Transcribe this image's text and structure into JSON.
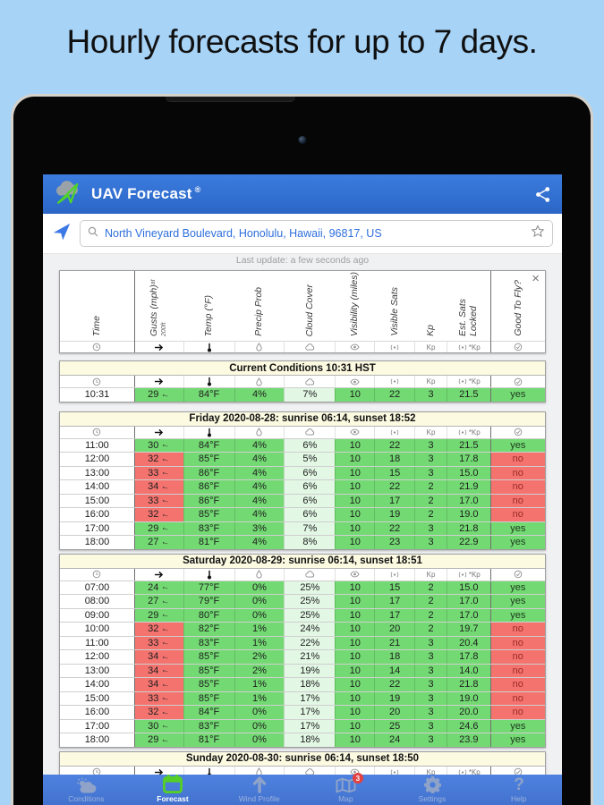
{
  "page": {
    "headline": "Hourly forecasts for up to 7 days."
  },
  "app": {
    "title": "UAV Forecast",
    "registered_mark": "®",
    "search": {
      "value": "North Vineyard Boulevard, Honolulu, Hawaii, 96817, US"
    },
    "last_update": "Last update: a few seconds ago",
    "close_label": "×"
  },
  "colors": {
    "page_bg": "#A7D3F7",
    "header_blue_1": "#3B7CDE",
    "header_blue_2": "#2B66C6",
    "nav_blue_1": "#4E82E0",
    "nav_blue_2": "#4372CE",
    "good_green": "#73DA73",
    "bad_red": "#F4736F",
    "pale_green": "#E2F7E4",
    "day_header_cream": "#FCFAE1",
    "badge_red": "#E34040",
    "forecast_green": "#55CE27"
  },
  "columns": [
    {
      "key": "time",
      "label": "Time",
      "icon": "clock"
    },
    {
      "key": "gusts",
      "label": "Gusts (mph)",
      "sub": "at 200ft",
      "icon": "wind-arrow"
    },
    {
      "key": "temp",
      "label": "Temp (°F)",
      "icon": "thermometer"
    },
    {
      "key": "precip",
      "label": "Precip Prob",
      "icon": "raindrop"
    },
    {
      "key": "cloud",
      "label": "Cloud Cover",
      "icon": "cloud"
    },
    {
      "key": "visibility",
      "label": "Visibility (miles)",
      "icon": "eye"
    },
    {
      "key": "visible-sats",
      "label": "Visible Sats",
      "icon": "satellite"
    },
    {
      "key": "kp",
      "label": "Kp",
      "icon": "kp"
    },
    {
      "key": "est-sats",
      "label": "Est. Sats Locked",
      "icon": "sat-kp"
    },
    {
      "key": "good-to-fly",
      "label": "Good To Fly?",
      "icon": "check-circle"
    }
  ],
  "sections": [
    {
      "kind": "current",
      "title": "Current Conditions 10:31 HST",
      "rows": [
        {
          "time": "10:31",
          "current": true,
          "cells": [
            [
              "29 ←",
              "g"
            ],
            [
              "84°F",
              "g"
            ],
            [
              "4%",
              "g"
            ],
            [
              "7%",
              "p"
            ],
            [
              "10",
              "g"
            ],
            [
              "22",
              "g"
            ],
            [
              "3",
              "g"
            ],
            [
              "21.5",
              "g"
            ],
            [
              "yes",
              "g"
            ]
          ]
        }
      ]
    },
    {
      "kind": "day",
      "title": "Friday 2020-08-28: sunrise 06:14, sunset 18:52",
      "rows": [
        {
          "time": "11:00",
          "cells": [
            [
              "30 ←",
              "g"
            ],
            [
              "84°F",
              "g"
            ],
            [
              "4%",
              "g"
            ],
            [
              "6%",
              "p"
            ],
            [
              "10",
              "g"
            ],
            [
              "22",
              "g"
            ],
            [
              "3",
              "g"
            ],
            [
              "21.5",
              "g"
            ],
            [
              "yes",
              "g"
            ]
          ]
        },
        {
          "time": "12:00",
          "cells": [
            [
              "32 ←",
              "r"
            ],
            [
              "85°F",
              "g"
            ],
            [
              "4%",
              "g"
            ],
            [
              "5%",
              "p"
            ],
            [
              "10",
              "g"
            ],
            [
              "18",
              "g"
            ],
            [
              "3",
              "g"
            ],
            [
              "17.8",
              "g"
            ],
            [
              "no",
              "r"
            ]
          ]
        },
        {
          "time": "13:00",
          "cells": [
            [
              "33 ←",
              "r"
            ],
            [
              "86°F",
              "g"
            ],
            [
              "4%",
              "g"
            ],
            [
              "6%",
              "p"
            ],
            [
              "10",
              "g"
            ],
            [
              "15",
              "g"
            ],
            [
              "3",
              "g"
            ],
            [
              "15.0",
              "g"
            ],
            [
              "no",
              "r"
            ]
          ]
        },
        {
          "time": "14:00",
          "cells": [
            [
              "34 ←",
              "r"
            ],
            [
              "86°F",
              "g"
            ],
            [
              "4%",
              "g"
            ],
            [
              "6%",
              "p"
            ],
            [
              "10",
              "g"
            ],
            [
              "22",
              "g"
            ],
            [
              "2",
              "g"
            ],
            [
              "21.9",
              "g"
            ],
            [
              "no",
              "r"
            ]
          ]
        },
        {
          "time": "15:00",
          "cells": [
            [
              "33 ←",
              "r"
            ],
            [
              "86°F",
              "g"
            ],
            [
              "4%",
              "g"
            ],
            [
              "6%",
              "p"
            ],
            [
              "10",
              "g"
            ],
            [
              "17",
              "g"
            ],
            [
              "2",
              "g"
            ],
            [
              "17.0",
              "g"
            ],
            [
              "no",
              "r"
            ]
          ]
        },
        {
          "time": "16:00",
          "cells": [
            [
              "32 ←",
              "r"
            ],
            [
              "85°F",
              "g"
            ],
            [
              "4%",
              "g"
            ],
            [
              "6%",
              "p"
            ],
            [
              "10",
              "g"
            ],
            [
              "19",
              "g"
            ],
            [
              "2",
              "g"
            ],
            [
              "19.0",
              "g"
            ],
            [
              "no",
              "r"
            ]
          ]
        },
        {
          "time": "17:00",
          "cells": [
            [
              "29 ←",
              "g"
            ],
            [
              "83°F",
              "g"
            ],
            [
              "3%",
              "g"
            ],
            [
              "7%",
              "p"
            ],
            [
              "10",
              "g"
            ],
            [
              "22",
              "g"
            ],
            [
              "3",
              "g"
            ],
            [
              "21.8",
              "g"
            ],
            [
              "yes",
              "g"
            ]
          ]
        },
        {
          "time": "18:00",
          "cells": [
            [
              "27 ←",
              "g"
            ],
            [
              "81°F",
              "g"
            ],
            [
              "4%",
              "g"
            ],
            [
              "8%",
              "p"
            ],
            [
              "10",
              "g"
            ],
            [
              "23",
              "g"
            ],
            [
              "3",
              "g"
            ],
            [
              "22.9",
              "g"
            ],
            [
              "yes",
              "g"
            ]
          ]
        }
      ]
    },
    {
      "kind": "day",
      "title": "Saturday 2020-08-29: sunrise 06:14, sunset 18:51",
      "rows": [
        {
          "time": "07:00",
          "cells": [
            [
              "24 ←",
              "g"
            ],
            [
              "77°F",
              "g"
            ],
            [
              "0%",
              "g"
            ],
            [
              "25%",
              "p"
            ],
            [
              "10",
              "g"
            ],
            [
              "15",
              "g"
            ],
            [
              "2",
              "g"
            ],
            [
              "15.0",
              "g"
            ],
            [
              "yes",
              "g"
            ]
          ]
        },
        {
          "time": "08:00",
          "cells": [
            [
              "27 ←",
              "g"
            ],
            [
              "79°F",
              "g"
            ],
            [
              "0%",
              "g"
            ],
            [
              "25%",
              "p"
            ],
            [
              "10",
              "g"
            ],
            [
              "17",
              "g"
            ],
            [
              "2",
              "g"
            ],
            [
              "17.0",
              "g"
            ],
            [
              "yes",
              "g"
            ]
          ]
        },
        {
          "time": "09:00",
          "cells": [
            [
              "29 ←",
              "g"
            ],
            [
              "80°F",
              "g"
            ],
            [
              "0%",
              "g"
            ],
            [
              "25%",
              "p"
            ],
            [
              "10",
              "g"
            ],
            [
              "17",
              "g"
            ],
            [
              "2",
              "g"
            ],
            [
              "17.0",
              "g"
            ],
            [
              "yes",
              "g"
            ]
          ]
        },
        {
          "time": "10:00",
          "cells": [
            [
              "32 ←",
              "r"
            ],
            [
              "82°F",
              "g"
            ],
            [
              "1%",
              "g"
            ],
            [
              "24%",
              "p"
            ],
            [
              "10",
              "g"
            ],
            [
              "20",
              "g"
            ],
            [
              "2",
              "g"
            ],
            [
              "19.7",
              "g"
            ],
            [
              "no",
              "r"
            ]
          ]
        },
        {
          "time": "11:00",
          "cells": [
            [
              "33 ←",
              "r"
            ],
            [
              "83°F",
              "g"
            ],
            [
              "1%",
              "g"
            ],
            [
              "22%",
              "p"
            ],
            [
              "10",
              "g"
            ],
            [
              "21",
              "g"
            ],
            [
              "3",
              "g"
            ],
            [
              "20.4",
              "g"
            ],
            [
              "no",
              "r"
            ]
          ]
        },
        {
          "time": "12:00",
          "cells": [
            [
              "34 ←",
              "r"
            ],
            [
              "85°F",
              "g"
            ],
            [
              "2%",
              "g"
            ],
            [
              "21%",
              "p"
            ],
            [
              "10",
              "g"
            ],
            [
              "18",
              "g"
            ],
            [
              "3",
              "g"
            ],
            [
              "17.8",
              "g"
            ],
            [
              "no",
              "r"
            ]
          ]
        },
        {
          "time": "13:00",
          "cells": [
            [
              "34 ←",
              "r"
            ],
            [
              "85°F",
              "g"
            ],
            [
              "2%",
              "g"
            ],
            [
              "19%",
              "p"
            ],
            [
              "10",
              "g"
            ],
            [
              "14",
              "g"
            ],
            [
              "3",
              "g"
            ],
            [
              "14.0",
              "g"
            ],
            [
              "no",
              "r"
            ]
          ]
        },
        {
          "time": "14:00",
          "cells": [
            [
              "34 ←",
              "r"
            ],
            [
              "85°F",
              "g"
            ],
            [
              "1%",
              "g"
            ],
            [
              "18%",
              "p"
            ],
            [
              "10",
              "g"
            ],
            [
              "22",
              "g"
            ],
            [
              "3",
              "g"
            ],
            [
              "21.8",
              "g"
            ],
            [
              "no",
              "r"
            ]
          ]
        },
        {
          "time": "15:00",
          "cells": [
            [
              "33 ←",
              "r"
            ],
            [
              "85°F",
              "g"
            ],
            [
              "1%",
              "g"
            ],
            [
              "17%",
              "p"
            ],
            [
              "10",
              "g"
            ],
            [
              "19",
              "g"
            ],
            [
              "3",
              "g"
            ],
            [
              "19.0",
              "g"
            ],
            [
              "no",
              "r"
            ]
          ]
        },
        {
          "time": "16:00",
          "cells": [
            [
              "32 ←",
              "r"
            ],
            [
              "84°F",
              "g"
            ],
            [
              "0%",
              "g"
            ],
            [
              "17%",
              "p"
            ],
            [
              "10",
              "g"
            ],
            [
              "20",
              "g"
            ],
            [
              "3",
              "g"
            ],
            [
              "20.0",
              "g"
            ],
            [
              "no",
              "r"
            ]
          ]
        },
        {
          "time": "17:00",
          "cells": [
            [
              "30 ←",
              "g"
            ],
            [
              "83°F",
              "g"
            ],
            [
              "0%",
              "g"
            ],
            [
              "17%",
              "p"
            ],
            [
              "10",
              "g"
            ],
            [
              "25",
              "g"
            ],
            [
              "3",
              "g"
            ],
            [
              "24.6",
              "g"
            ],
            [
              "yes",
              "g"
            ]
          ]
        },
        {
          "time": "18:00",
          "cells": [
            [
              "29 ←",
              "g"
            ],
            [
              "81°F",
              "g"
            ],
            [
              "0%",
              "g"
            ],
            [
              "18%",
              "p"
            ],
            [
              "10",
              "g"
            ],
            [
              "24",
              "g"
            ],
            [
              "3",
              "g"
            ],
            [
              "23.9",
              "g"
            ],
            [
              "yes",
              "g"
            ]
          ]
        }
      ]
    },
    {
      "kind": "day",
      "title": "Sunday 2020-08-30: sunrise 06:14, sunset 18:50",
      "rows": [
        {
          "time": "",
          "sliver": true,
          "cells": [
            [
              "",
              "r"
            ],
            [
              "",
              "g"
            ],
            [
              "",
              "g"
            ],
            [
              "",
              "p"
            ],
            [
              "",
              "g"
            ],
            [
              "",
              "g"
            ],
            [
              "",
              "g"
            ],
            [
              "",
              "g"
            ],
            [
              "",
              "r"
            ]
          ]
        }
      ]
    }
  ],
  "nav": {
    "items": [
      {
        "label": "Conditions",
        "icon": "conditions"
      },
      {
        "label": "Forecast",
        "icon": "forecast",
        "active": true
      },
      {
        "label": "Wind Profile",
        "icon": "wind-profile"
      },
      {
        "label": "Map",
        "icon": "map",
        "badge": "3"
      },
      {
        "label": "Settings",
        "icon": "settings"
      },
      {
        "label": "Help",
        "icon": "help"
      }
    ]
  }
}
